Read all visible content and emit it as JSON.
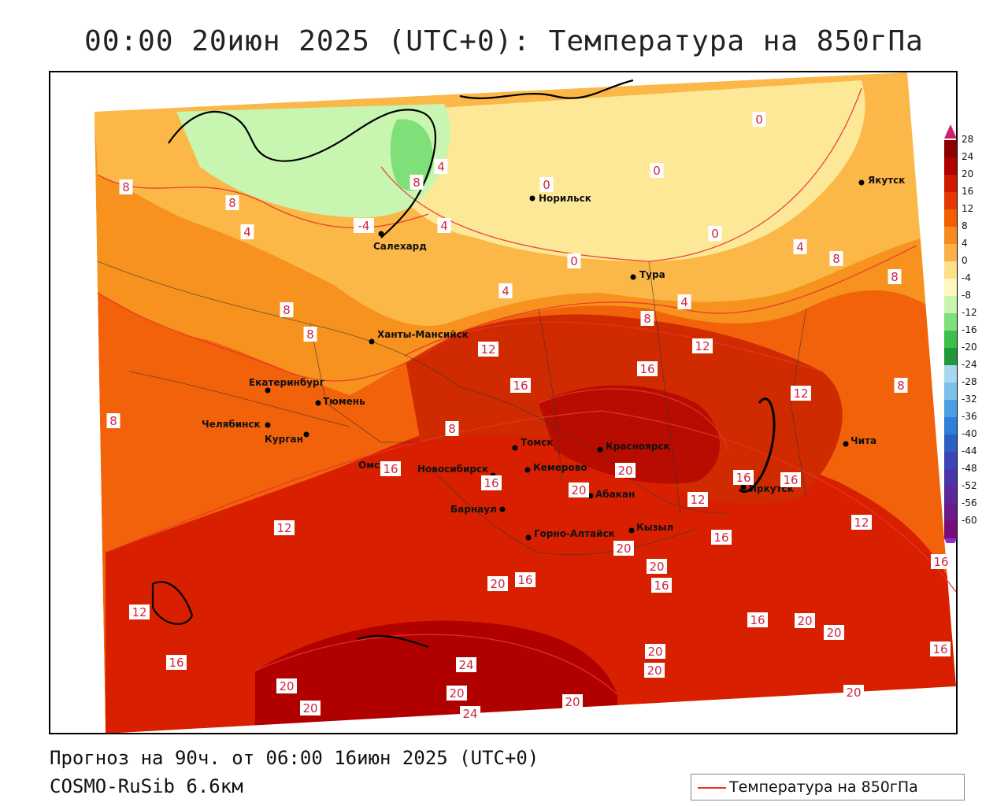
{
  "title": "00:00 20июн 2025 (UTC+0): Температура на 850гПа",
  "footer": {
    "forecast": "Прогноз на 90ч. от 06:00 16июн 2025 (UTC+0)",
    "model": "COSMO-RuSib 6.6км"
  },
  "legend": {
    "label": "Температура на 850гПа",
    "line_color": "#e8342b"
  },
  "colorbar": {
    "levels": [
      "28",
      "24",
      "20",
      "16",
      "12",
      "8",
      "4",
      "0",
      "-4",
      "-8",
      "-12",
      "-16",
      "-20",
      "-24",
      "-28",
      "-32",
      "-36",
      "-40",
      "-44",
      "-48",
      "-52",
      "-56",
      "-60"
    ],
    "colors": [
      "#8b0000",
      "#b00000",
      "#d01a00",
      "#e63800",
      "#f25d00",
      "#f78a20",
      "#fbb04a",
      "#fde08a",
      "#fff6c0",
      "#c8f5b0",
      "#7fe07a",
      "#3cc04a",
      "#1f9a3a",
      "#a8d8f0",
      "#7cc0ec",
      "#4aa0e4",
      "#2d7fd8",
      "#2a5fc6",
      "#3a45b8",
      "#4a35a8",
      "#5a2898",
      "#6a1a88",
      "#7a0c78"
    ]
  },
  "cities": [
    {
      "name": "Норильск"
    },
    {
      "name": "Якутск"
    },
    {
      "name": "Салехард"
    },
    {
      "name": "Тура"
    },
    {
      "name": "Ханты-Мансийск"
    },
    {
      "name": "Екатеринбург"
    },
    {
      "name": "Тюмень"
    },
    {
      "name": "Челябинск"
    },
    {
      "name": "Курган"
    },
    {
      "name": "Омск"
    },
    {
      "name": "Новосибирск"
    },
    {
      "name": "Томск"
    },
    {
      "name": "Кемерово"
    },
    {
      "name": "Красноярск"
    },
    {
      "name": "Абакан"
    },
    {
      "name": "Барнаул"
    },
    {
      "name": "Горно-Алтайск"
    },
    {
      "name": "Кызыл"
    },
    {
      "name": "Иркутск"
    },
    {
      "name": "Чита"
    }
  ],
  "isotherm_labels": [
    "8",
    "8",
    "4",
    "-4",
    "8",
    "0",
    "4",
    "0",
    "0",
    "4",
    "0",
    "4",
    "8",
    "8",
    "4",
    "0",
    "8",
    "8",
    "4",
    "8",
    "12",
    "16",
    "16",
    "12",
    "12",
    "8",
    "8",
    "8",
    "12",
    "16",
    "20",
    "16",
    "20",
    "16",
    "16",
    "12",
    "12",
    "16",
    "20",
    "20",
    "16",
    "16",
    "12",
    "20",
    "20",
    "24",
    "20",
    "24",
    "20",
    "20",
    "16",
    "20",
    "20",
    "16",
    "20",
    "20",
    "16",
    "20",
    "16"
  ]
}
